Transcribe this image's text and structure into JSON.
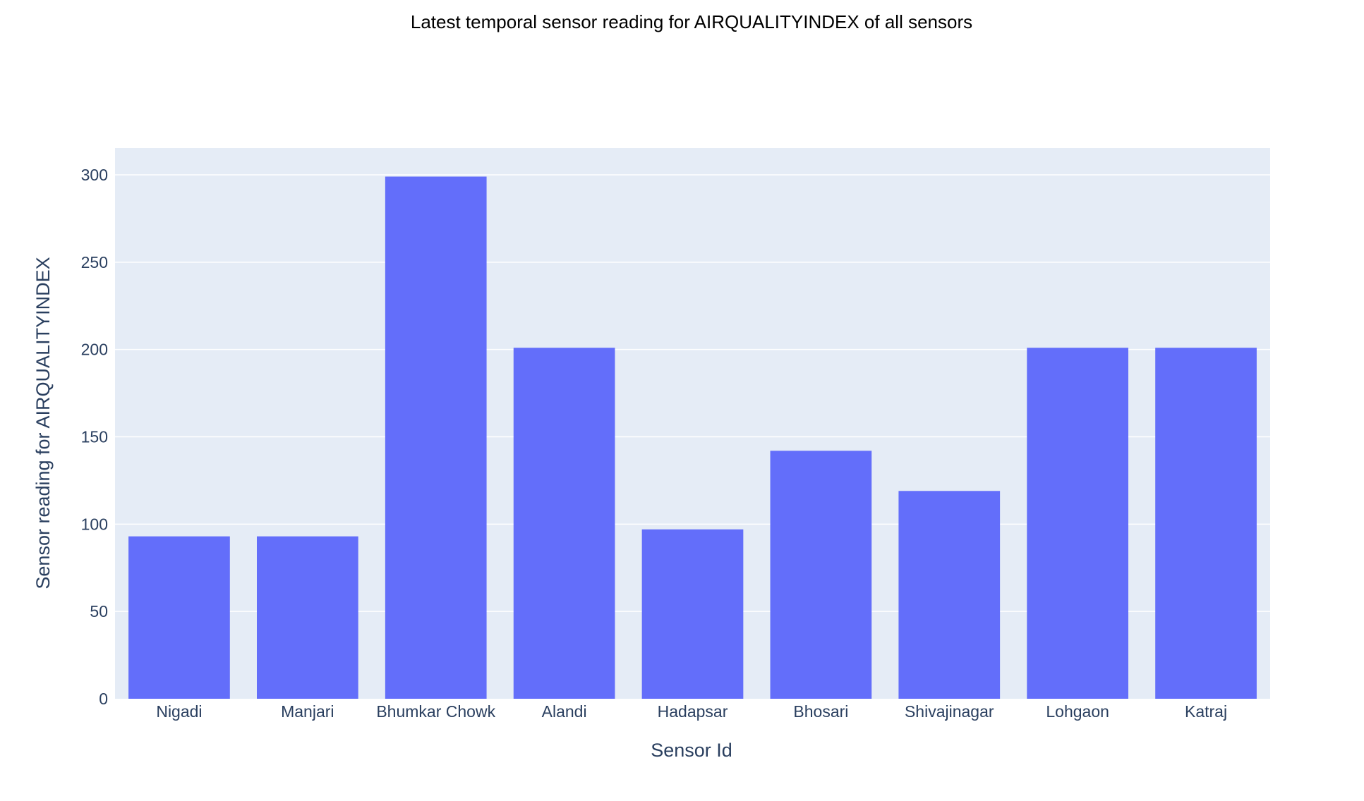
{
  "colors": {
    "bar": "#636efa",
    "plot_background": "#e5ecf6",
    "gridline": "#ffffff",
    "axis_text": "#2a3f5f",
    "title_text": "#000000"
  },
  "chart_data": {
    "type": "bar",
    "title": "Latest temporal sensor reading for AIRQUALITYINDEX of all sensors",
    "xlabel": "Sensor Id",
    "ylabel": "Sensor reading for AIRQUALITYINDEX",
    "categories": [
      "Nigadi",
      "Manjari",
      "Bhumkar Chowk",
      "Alandi",
      "Hadapsar",
      "Bhosari",
      "Shivajinagar",
      "Lohgaon",
      "Katraj"
    ],
    "values": [
      93,
      93,
      299,
      201,
      97,
      142,
      119,
      201,
      201
    ],
    "ylim": [
      0,
      315
    ],
    "yticks": [
      0,
      50,
      100,
      150,
      200,
      250,
      300
    ],
    "ytick_labels": [
      "0",
      "50",
      "100",
      "150",
      "200",
      "250",
      "300"
    ],
    "grid": true,
    "legend": "none"
  }
}
